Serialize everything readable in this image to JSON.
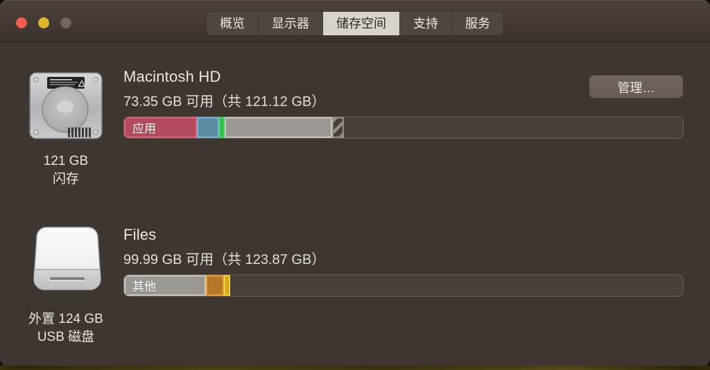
{
  "window": {
    "title_bar": {
      "traffic_lights": [
        {
          "name": "close",
          "color": "#f15e51"
        },
        {
          "name": "minimize",
          "color": "#ddb62f"
        },
        {
          "name": "zoom-disabled",
          "color": "#6f6862"
        }
      ],
      "tabs": [
        {
          "label": "概览",
          "selected": false
        },
        {
          "label": "显示器",
          "selected": false
        },
        {
          "label": "储存空间",
          "selected": true
        },
        {
          "label": "支持",
          "selected": false
        },
        {
          "label": "服务",
          "selected": false
        }
      ]
    }
  },
  "drives": [
    {
      "name": "Macintosh HD",
      "availability": "73.35 GB 可用（共 121.12 GB）",
      "caption": [
        "121 GB",
        "闪存"
      ],
      "manage_label": "管理…",
      "icon": "internal-hard-drive-icon",
      "bar_label": "应用",
      "segments": [
        {
          "kind": "apps",
          "width_pct": 13.0,
          "fill": "#b24b5e",
          "edge": "#e06078"
        },
        {
          "kind": "blue-category",
          "width_pct": 4.0,
          "fill": "#5e8da2",
          "edge": "#73b9d8"
        },
        {
          "kind": "green-category",
          "width_pct": 1.0,
          "fill": "#2fc04c",
          "edge": "#45cf5e"
        },
        {
          "kind": "other",
          "width_pct": 19.2,
          "fill": "#9b9793",
          "edge": "#cbc7c3"
        },
        {
          "kind": "purgeable",
          "width_pct": 2.1,
          "pattern": "diagonal-stripes"
        }
      ]
    },
    {
      "name": "Files",
      "availability": "99.99 GB 可用（共 123.87 GB）",
      "caption": [
        "外置 124 GB",
        "USB 磁盘"
      ],
      "icon": "external-usb-drive-icon",
      "bar_label": "其他",
      "segments": [
        {
          "kind": "other",
          "width_pct": 14.6,
          "fill": "#9b9793",
          "edge": "#cbc7c3"
        },
        {
          "kind": "orange-category",
          "width_pct": 3.3,
          "fill": "#b5782b",
          "edge": "#f0a032"
        },
        {
          "kind": "yellow-category",
          "width_pct": 1.1,
          "fill": "#d2a51f",
          "edge": "#f7d03c"
        }
      ]
    }
  ]
}
